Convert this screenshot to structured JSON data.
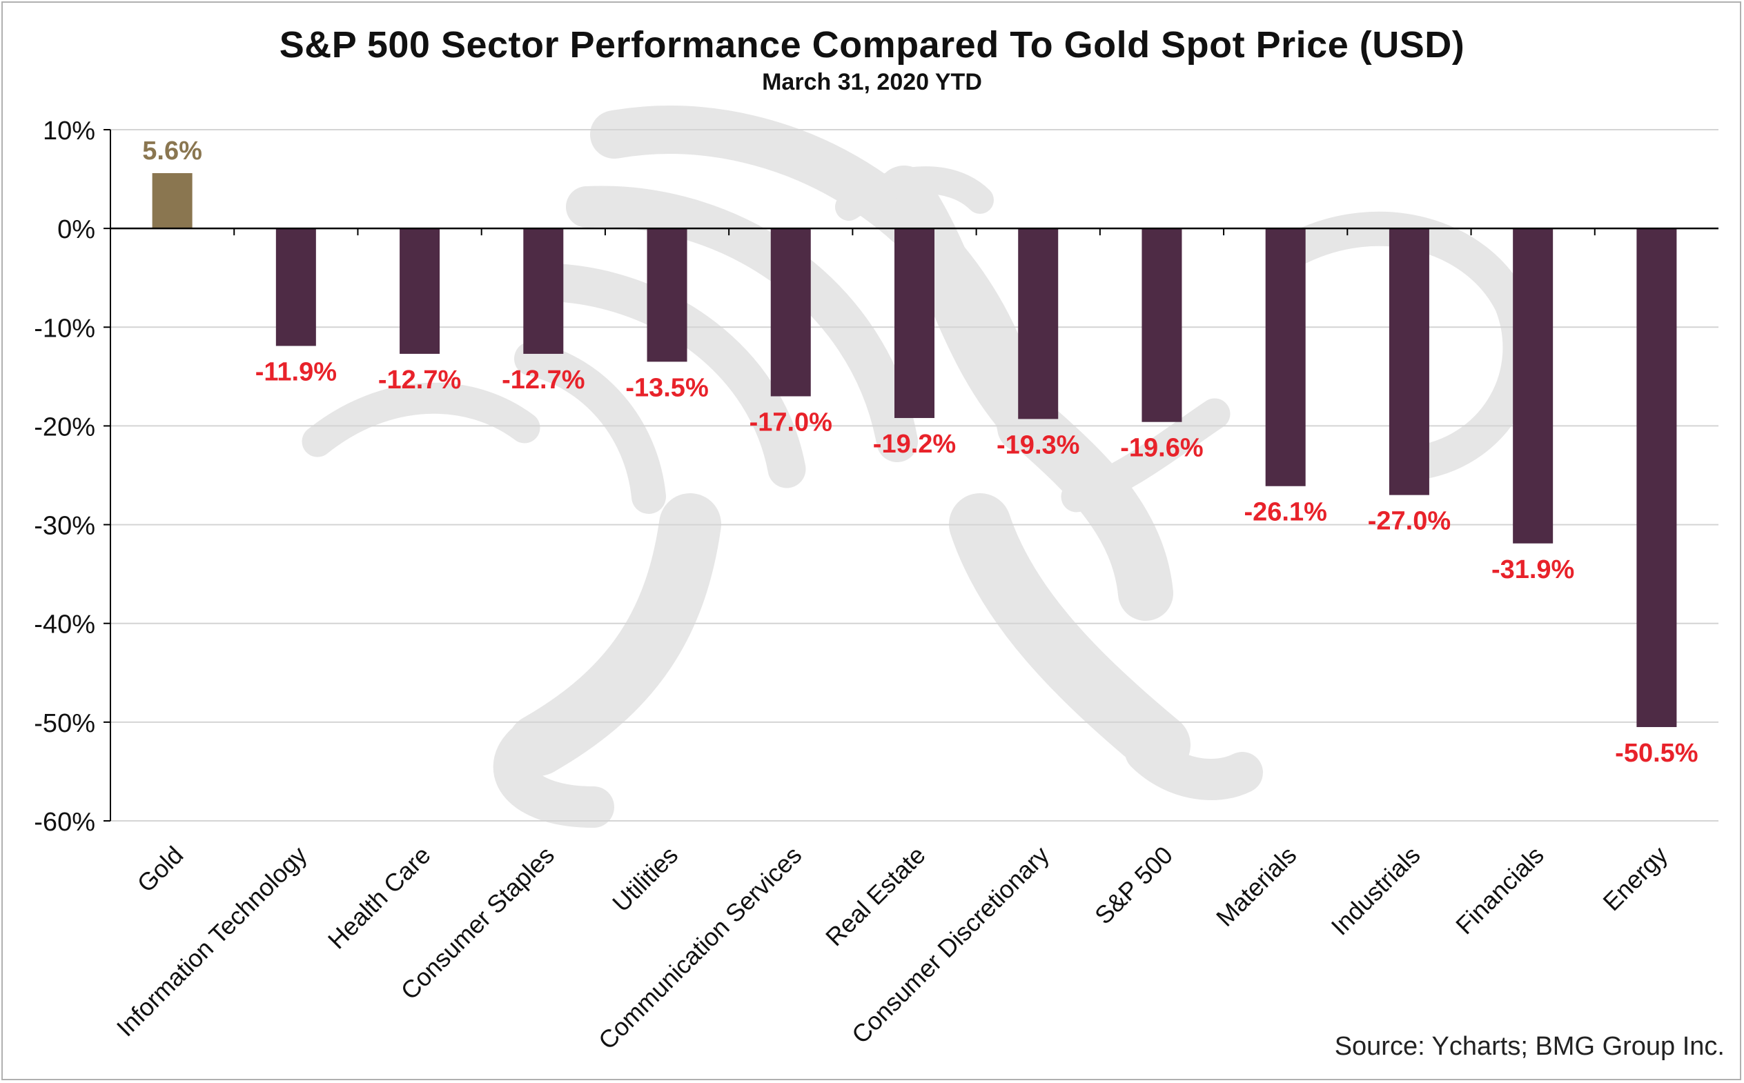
{
  "chart_data": {
    "type": "bar",
    "title": "S&P 500 Sector Performance Compared To Gold Spot Price (USD)",
    "subtitle": "March 31, 2020 YTD",
    "xlabel": "",
    "ylabel": "",
    "categories": [
      "Gold",
      "Information Technology",
      "Health Care",
      "Consumer Staples",
      "Utilities",
      "Communication Services",
      "Real Estate",
      "Consumer Discretionary",
      "S&P 500",
      "Materials",
      "Industrials",
      "Financials",
      "Energy"
    ],
    "values": [
      5.6,
      -11.9,
      -12.7,
      -12.7,
      -13.5,
      -17.0,
      -19.2,
      -19.3,
      -19.6,
      -26.1,
      -27.0,
      -31.9,
      -50.5
    ],
    "data_labels": [
      "5.6%",
      "-11.9%",
      "-12.7%",
      "-12.7%",
      "-13.5%",
      "-17.0%",
      "-19.2%",
      "-19.3%",
      "-19.6%",
      "-26.1%",
      "-27.0%",
      "-31.9%",
      "-50.5%"
    ],
    "ylim": [
      -60,
      10
    ],
    "yticks": [
      10,
      0,
      -10,
      -20,
      -30,
      -40,
      -50,
      -60
    ],
    "ytick_labels": [
      "10%",
      "0%",
      "-10%",
      "-20%",
      "-30%",
      "-40%",
      "-50%",
      "-60%"
    ],
    "grid": true,
    "legend": "none",
    "colors": {
      "gold_bar": "#8a7650",
      "sector_bar": "#4e2b45",
      "gold_label": "#8a7650",
      "negative_label": "#e8222a",
      "grid": "#d4d4d4",
      "axis": "#000000"
    }
  },
  "source": "Source: Ycharts; BMG Group Inc."
}
